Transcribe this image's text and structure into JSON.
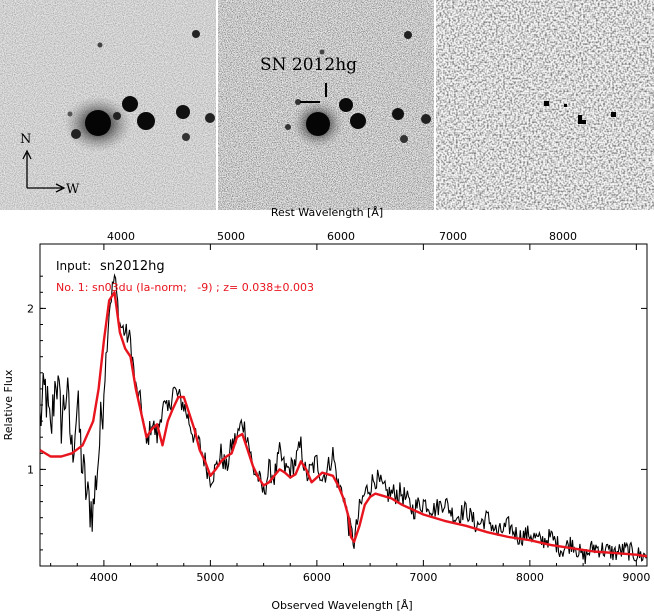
{
  "images": {
    "supernova_label": "SN 2012hg",
    "compass_north": "N",
    "compass_west": "W"
  },
  "chart_data": {
    "type": "line",
    "top_axis": {
      "label": "Rest Wavelength [Å]",
      "ticks": [
        4000,
        5000,
        6000,
        7000,
        8000
      ]
    },
    "xlabel": "Observed Wavelength [Å]",
    "ylabel": "Relative Flux",
    "xlim": [
      3400,
      9100
    ],
    "ylim": [
      0.4,
      2.4
    ],
    "x_ticks": [
      4000,
      5000,
      6000,
      7000,
      8000,
      9000
    ],
    "y_ticks": [
      1,
      2
    ],
    "annotations": {
      "input_label": "Input:",
      "input_value": "sn2012hg",
      "match_text": "No. 1: sn03du (Ia-norm;   -9) ; z= 0.038±0.003"
    },
    "grid": false,
    "colors": {
      "observed": "#000000",
      "template": "#e8141e"
    },
    "series": [
      {
        "key": "observed",
        "x": [
          3400,
          3450,
          3500,
          3550,
          3600,
          3650,
          3700,
          3750,
          3800,
          3850,
          3900,
          3950,
          4000,
          4050,
          4100,
          4150,
          4200,
          4250,
          4300,
          4350,
          4400,
          4450,
          4500,
          4550,
          4600,
          4650,
          4700,
          4750,
          4800,
          4850,
          4900,
          4950,
          5000,
          5050,
          5100,
          5150,
          5200,
          5250,
          5300,
          5350,
          5400,
          5450,
          5500,
          5550,
          5600,
          5650,
          5700,
          5750,
          5800,
          5850,
          5900,
          5950,
          6000,
          6050,
          6100,
          6150,
          6200,
          6250,
          6300,
          6350,
          6400,
          6450,
          6500,
          6550,
          6600,
          6650,
          6700,
          6800,
          6900,
          7000,
          7100,
          7200,
          7300,
          7400,
          7500,
          7600,
          7700,
          7800,
          7900,
          8000,
          8100,
          8200,
          8300,
          8400,
          8500,
          8600,
          8700,
          8800,
          8900,
          9000,
          9100
        ],
        "y": [
          1.3,
          1.5,
          1.2,
          1.6,
          1.3,
          1.5,
          1.1,
          1.4,
          1.0,
          0.8,
          0.75,
          1.1,
          1.5,
          2.0,
          2.2,
          1.9,
          1.85,
          1.8,
          1.5,
          1.4,
          1.15,
          1.3,
          1.2,
          1.4,
          1.35,
          1.5,
          1.45,
          1.4,
          1.3,
          1.2,
          1.15,
          1.05,
          0.95,
          1.0,
          1.1,
          1.0,
          1.15,
          1.2,
          1.3,
          1.2,
          1.0,
          0.95,
          0.85,
          1.0,
          0.95,
          1.1,
          1.0,
          1.0,
          1.05,
          1.15,
          0.95,
          1.0,
          1.05,
          0.95,
          1.0,
          1.1,
          0.9,
          0.85,
          0.65,
          0.55,
          0.75,
          0.85,
          0.9,
          0.95,
          0.9,
          0.85,
          0.85,
          0.85,
          0.75,
          0.8,
          0.75,
          0.8,
          0.7,
          0.75,
          0.65,
          0.7,
          0.6,
          0.65,
          0.58,
          0.6,
          0.55,
          0.58,
          0.5,
          0.55,
          0.45,
          0.52,
          0.5,
          0.48,
          0.5,
          0.47,
          0.46
        ]
      },
      {
        "key": "template",
        "x": [
          3400,
          3500,
          3600,
          3700,
          3800,
          3900,
          3950,
          4000,
          4050,
          4100,
          4150,
          4200,
          4250,
          4300,
          4350,
          4400,
          4450,
          4500,
          4550,
          4600,
          4650,
          4700,
          4750,
          4800,
          4850,
          4900,
          4950,
          5000,
          5050,
          5100,
          5150,
          5200,
          5250,
          5300,
          5350,
          5400,
          5450,
          5500,
          5550,
          5600,
          5650,
          5700,
          5750,
          5800,
          5850,
          5900,
          5950,
          6000,
          6050,
          6100,
          6150,
          6200,
          6250,
          6300,
          6320,
          6350,
          6400,
          6450,
          6500,
          6550,
          6600,
          6700,
          6800,
          6900,
          7000,
          7200,
          7400,
          7600,
          7800,
          8000,
          8200,
          8400,
          8600,
          8800,
          9000,
          9100
        ],
        "y": [
          1.12,
          1.08,
          1.08,
          1.1,
          1.15,
          1.3,
          1.5,
          1.8,
          2.05,
          2.1,
          1.85,
          1.75,
          1.7,
          1.5,
          1.35,
          1.2,
          1.25,
          1.28,
          1.15,
          1.3,
          1.38,
          1.45,
          1.45,
          1.35,
          1.25,
          1.12,
          1.05,
          0.96,
          1.0,
          1.05,
          1.08,
          1.1,
          1.2,
          1.22,
          1.12,
          1.02,
          0.95,
          0.9,
          0.92,
          0.96,
          1.0,
          0.98,
          0.95,
          0.97,
          1.05,
          1.0,
          0.92,
          0.95,
          0.98,
          0.97,
          0.96,
          0.9,
          0.82,
          0.7,
          0.58,
          0.55,
          0.65,
          0.78,
          0.83,
          0.85,
          0.84,
          0.82,
          0.78,
          0.75,
          0.72,
          0.68,
          0.65,
          0.61,
          0.58,
          0.56,
          0.53,
          0.51,
          0.49,
          0.48,
          0.47,
          0.46
        ]
      }
    ]
  }
}
